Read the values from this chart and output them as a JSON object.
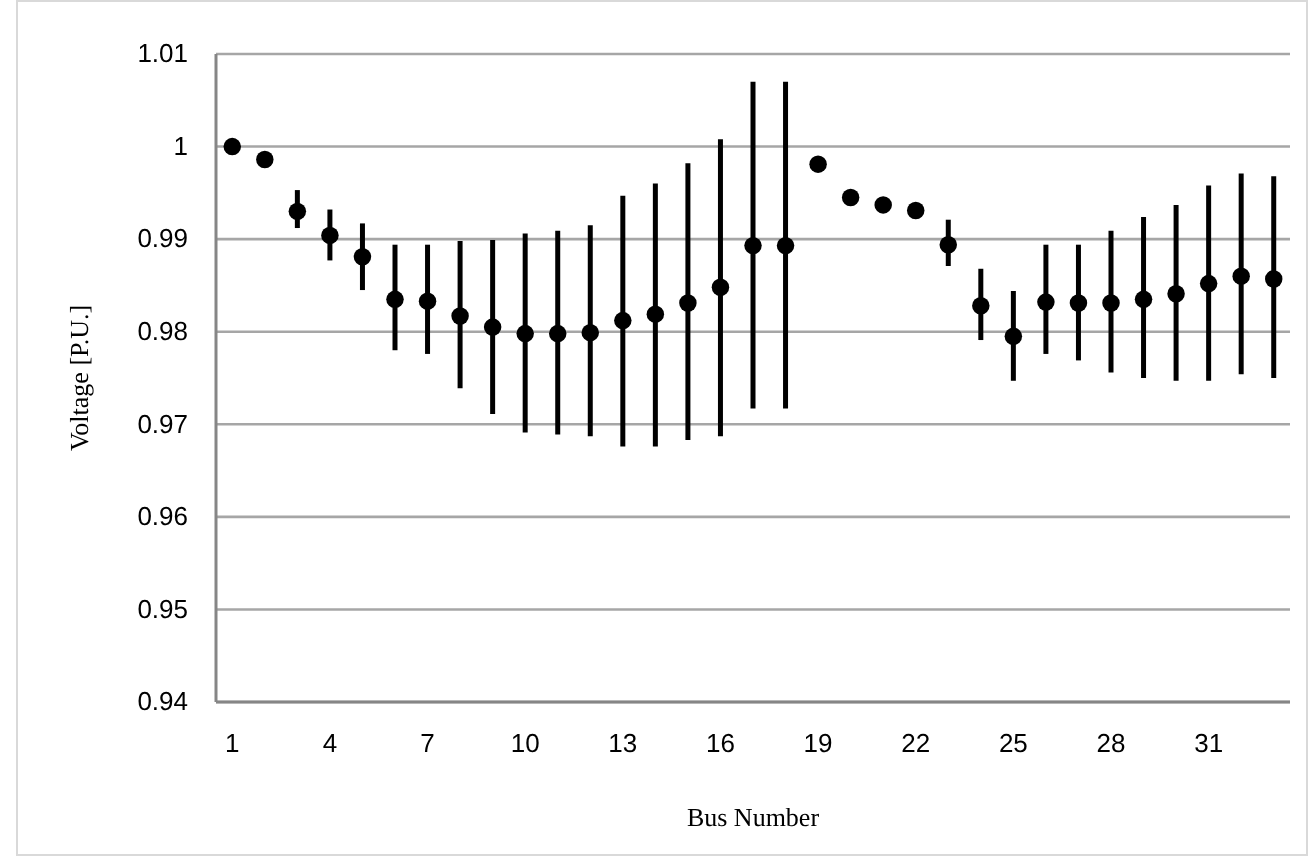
{
  "chart_data": {
    "type": "scatter",
    "xlabel": "Bus Number",
    "ylabel": "Voltage [P.U.]",
    "categories": [
      "1",
      null,
      null,
      "4",
      null,
      null,
      "7",
      null,
      null,
      "10",
      null,
      null,
      "13",
      null,
      null,
      "16",
      null,
      null,
      "19",
      null,
      null,
      "22",
      null,
      null,
      "25",
      null,
      null,
      "28",
      null,
      null,
      "31",
      null,
      null
    ],
    "series": [
      {
        "color": "#000000",
        "values": [
          1.0,
          0.9986,
          0.993,
          0.9904,
          0.9881,
          0.9835,
          0.9833,
          0.9817,
          0.9805,
          0.9798,
          0.9798,
          0.9799,
          0.9812,
          0.9819,
          0.9831,
          0.9848,
          0.9893,
          0.9893,
          0.9981,
          0.9945,
          0.9937,
          0.9931,
          0.9894,
          0.9828,
          0.9795,
          0.9832,
          0.9831,
          0.9831,
          0.9835,
          0.9841,
          0.9852,
          0.986,
          0.9857
        ],
        "errors": [
          null,
          null,
          [
            0.9912,
            0.9953
          ],
          [
            0.9877,
            0.9932
          ],
          [
            0.9845,
            0.9917
          ],
          [
            0.978,
            0.9894
          ],
          [
            0.9776,
            0.9894
          ],
          [
            0.9739,
            0.9898
          ],
          [
            0.9711,
            0.9899
          ],
          [
            0.9691,
            0.9906
          ],
          [
            0.9689,
            0.9909
          ],
          [
            0.9687,
            0.9915
          ],
          [
            0.9676,
            0.9947
          ],
          [
            0.9676,
            0.996
          ],
          [
            0.9683,
            0.9982
          ],
          [
            0.9687,
            1.0008
          ],
          [
            0.9717,
            1.007
          ],
          [
            0.9717,
            1.007
          ],
          null,
          [
            0.9942,
            0.9949
          ],
          [
            0.9934,
            0.9942
          ],
          [
            0.9927,
            0.9937
          ],
          [
            0.9871,
            0.9921
          ],
          [
            0.9791,
            0.9868
          ],
          [
            0.9747,
            0.9844
          ],
          [
            0.9776,
            0.9894
          ],
          [
            0.9769,
            0.9894
          ],
          [
            0.9756,
            0.9909
          ],
          [
            0.975,
            0.9924
          ],
          [
            0.9747,
            0.9937
          ],
          [
            0.9747,
            0.9958
          ],
          [
            0.9754,
            0.9971
          ],
          [
            0.975,
            0.9968
          ]
        ]
      }
    ],
    "ylim": [
      0.94,
      1.01
    ],
    "yticks": [
      0.94,
      0.95,
      0.96,
      0.97,
      0.98,
      0.99,
      {
        "value": 1,
        "label": "1"
      },
      1.01
    ],
    "grid": "y",
    "marker": "circle"
  }
}
